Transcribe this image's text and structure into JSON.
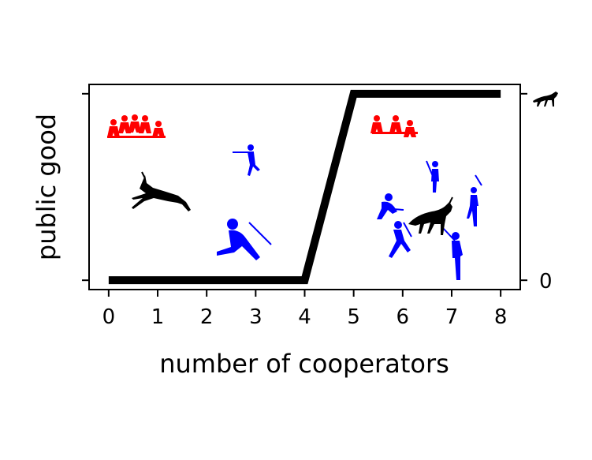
{
  "chart_data": {
    "type": "line",
    "xlabel": "number of cooperators",
    "ylabel": "public good",
    "x": [
      0,
      1,
      2,
      3,
      4,
      5,
      6,
      7,
      8
    ],
    "series": [
      {
        "values": [
          0,
          0,
          0,
          0,
          0,
          1,
          1,
          1,
          1
        ],
        "color": "#000000"
      }
    ],
    "xlim": [
      -0.4,
      8.4
    ],
    "ylim": [
      -0.05,
      1.05
    ],
    "xticks": [
      "0",
      "1",
      "2",
      "3",
      "4",
      "5",
      "6",
      "7",
      "8"
    ],
    "right_yticks": [
      "0"
    ],
    "right_top_tick_icon": "deer-icon",
    "grid": false,
    "legend": "none",
    "illustrations": [
      "red-seated-group-left",
      "red-seated-group-right",
      "blue-hunter-figures",
      "black-leaping-deer",
      "black-standing-deer"
    ],
    "colors": {
      "line": "#000000",
      "seated_people": "#ff0000",
      "hunters": "#0000ff",
      "animals": "#000000"
    }
  }
}
